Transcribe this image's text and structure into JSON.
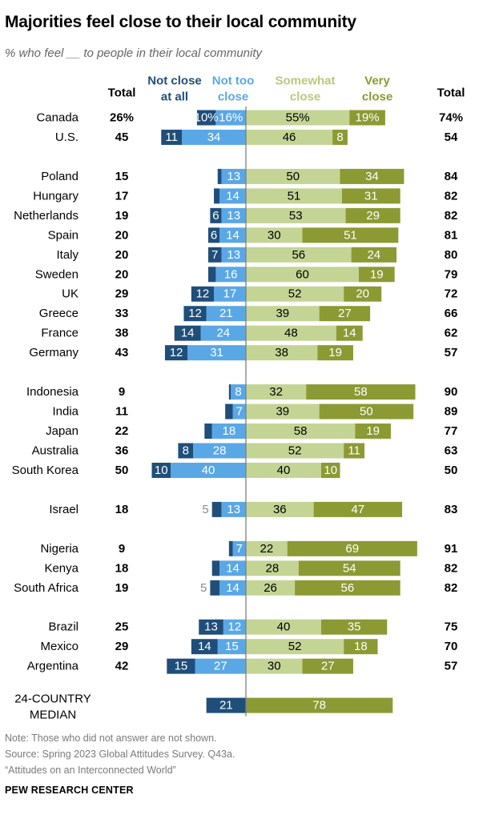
{
  "header": {
    "title": "Majorities feel close to their local community",
    "subtitle": "% who feel __ to people in their local community"
  },
  "colors": {
    "not_close_at_all": "#1f4e79",
    "not_too_close": "#5aa7e6",
    "somewhat_close": "#c4d494",
    "very_close": "#8c9a33",
    "header_dark_blue": "#1f4e79",
    "header_light_blue": "#5aa7e6",
    "header_light_green": "#b8c97a",
    "header_dark_green": "#8c9a33",
    "muted_text": "#8a8a8a"
  },
  "chart_data": {
    "type": "bar",
    "orientation": "diverging-stacked-horizontal",
    "columns": {
      "total_left": "Total",
      "not_close_at_all": "Not close at all",
      "not_too_close": "Not too close",
      "somewhat_close": "Somewhat close",
      "very_close": "Very close",
      "total_right": "Total"
    },
    "series_order": [
      "not_close_at_all",
      "not_too_close",
      "somewhat_close",
      "very_close"
    ],
    "groups": [
      [
        {
          "country": "Canada",
          "not_close_at_all": 10,
          "not_too_close": 16,
          "somewhat_close": 55,
          "very_close": 19,
          "total_not_close": 26,
          "total_close": 74,
          "percent_labels": true
        },
        {
          "country": "U.S.",
          "not_close_at_all": 11,
          "not_too_close": 34,
          "somewhat_close": 46,
          "very_close": 8,
          "total_not_close": 45,
          "total_close": 54
        }
      ],
      [
        {
          "country": "Poland",
          "not_close_at_all": 2,
          "not_too_close": 13,
          "somewhat_close": 50,
          "very_close": 34,
          "total_not_close": 15,
          "total_close": 84
        },
        {
          "country": "Hungary",
          "not_close_at_all": 3,
          "not_too_close": 14,
          "somewhat_close": 51,
          "very_close": 31,
          "total_not_close": 17,
          "total_close": 82
        },
        {
          "country": "Netherlands",
          "not_close_at_all": 6,
          "not_too_close": 13,
          "somewhat_close": 53,
          "very_close": 29,
          "total_not_close": 19,
          "total_close": 82
        },
        {
          "country": "Spain",
          "not_close_at_all": 6,
          "not_too_close": 14,
          "somewhat_close": 30,
          "very_close": 51,
          "total_not_close": 20,
          "total_close": 81
        },
        {
          "country": "Italy",
          "not_close_at_all": 7,
          "not_too_close": 13,
          "somewhat_close": 56,
          "very_close": 24,
          "total_not_close": 20,
          "total_close": 80
        },
        {
          "country": "Sweden",
          "not_close_at_all": 4,
          "not_too_close": 16,
          "somewhat_close": 60,
          "very_close": 19,
          "total_not_close": 20,
          "total_close": 79
        },
        {
          "country": "UK",
          "not_close_at_all": 12,
          "not_too_close": 17,
          "somewhat_close": 52,
          "very_close": 20,
          "total_not_close": 29,
          "total_close": 72
        },
        {
          "country": "Greece",
          "not_close_at_all": 12,
          "not_too_close": 21,
          "somewhat_close": 39,
          "very_close": 27,
          "total_not_close": 33,
          "total_close": 66
        },
        {
          "country": "France",
          "not_close_at_all": 14,
          "not_too_close": 24,
          "somewhat_close": 48,
          "very_close": 14,
          "total_not_close": 38,
          "total_close": 62
        },
        {
          "country": "Germany",
          "not_close_at_all": 12,
          "not_too_close": 31,
          "somewhat_close": 38,
          "very_close": 19,
          "total_not_close": 43,
          "total_close": 57
        }
      ],
      [
        {
          "country": "Indonesia",
          "not_close_at_all": 1,
          "not_too_close": 8,
          "somewhat_close": 32,
          "very_close": 58,
          "total_not_close": 9,
          "total_close": 90
        },
        {
          "country": "India",
          "not_close_at_all": 4,
          "not_too_close": 7,
          "somewhat_close": 39,
          "very_close": 50,
          "total_not_close": 11,
          "total_close": 89
        },
        {
          "country": "Japan",
          "not_close_at_all": 4,
          "not_too_close": 18,
          "somewhat_close": 58,
          "very_close": 19,
          "total_not_close": 22,
          "total_close": 77
        },
        {
          "country": "Australia",
          "not_close_at_all": 8,
          "not_too_close": 28,
          "somewhat_close": 52,
          "very_close": 11,
          "total_not_close": 36,
          "total_close": 63
        },
        {
          "country": "South Korea",
          "not_close_at_all": 10,
          "not_too_close": 40,
          "somewhat_close": 40,
          "very_close": 10,
          "total_not_close": 50,
          "total_close": 50
        }
      ],
      [
        {
          "country": "Israel",
          "not_close_at_all": 5,
          "not_too_close": 13,
          "somewhat_close": 36,
          "very_close": 47,
          "total_not_close": 18,
          "total_close": 83
        }
      ],
      [
        {
          "country": "Nigeria",
          "not_close_at_all": 2,
          "not_too_close": 7,
          "somewhat_close": 22,
          "very_close": 69,
          "total_not_close": 9,
          "total_close": 91
        },
        {
          "country": "Kenya",
          "not_close_at_all": 4,
          "not_too_close": 14,
          "somewhat_close": 28,
          "very_close": 54,
          "total_not_close": 18,
          "total_close": 82
        },
        {
          "country": "South Africa",
          "not_close_at_all": 5,
          "not_too_close": 14,
          "somewhat_close": 26,
          "very_close": 56,
          "total_not_close": 19,
          "total_close": 82
        }
      ],
      [
        {
          "country": "Brazil",
          "not_close_at_all": 13,
          "not_too_close": 12,
          "somewhat_close": 40,
          "very_close": 35,
          "total_not_close": 25,
          "total_close": 75
        },
        {
          "country": "Mexico",
          "not_close_at_all": 14,
          "not_too_close": 15,
          "somewhat_close": 52,
          "very_close": 18,
          "total_not_close": 29,
          "total_close": 70
        },
        {
          "country": "Argentina",
          "not_close_at_all": 15,
          "not_too_close": 27,
          "somewhat_close": 30,
          "very_close": 27,
          "total_not_close": 42,
          "total_close": 57
        }
      ]
    ],
    "median": {
      "label_line1": "24-COUNTRY",
      "label_line2": "MEDIAN",
      "not_close_total": 21,
      "close_total": 78
    }
  },
  "footer": {
    "note": "Note: Those who did not answer are not shown.",
    "source": "Source: Spring 2023 Global Attitudes Survey. Q43a.",
    "report": "“Attitudes on an Interconnected World”",
    "brand": "PEW RESEARCH CENTER"
  }
}
